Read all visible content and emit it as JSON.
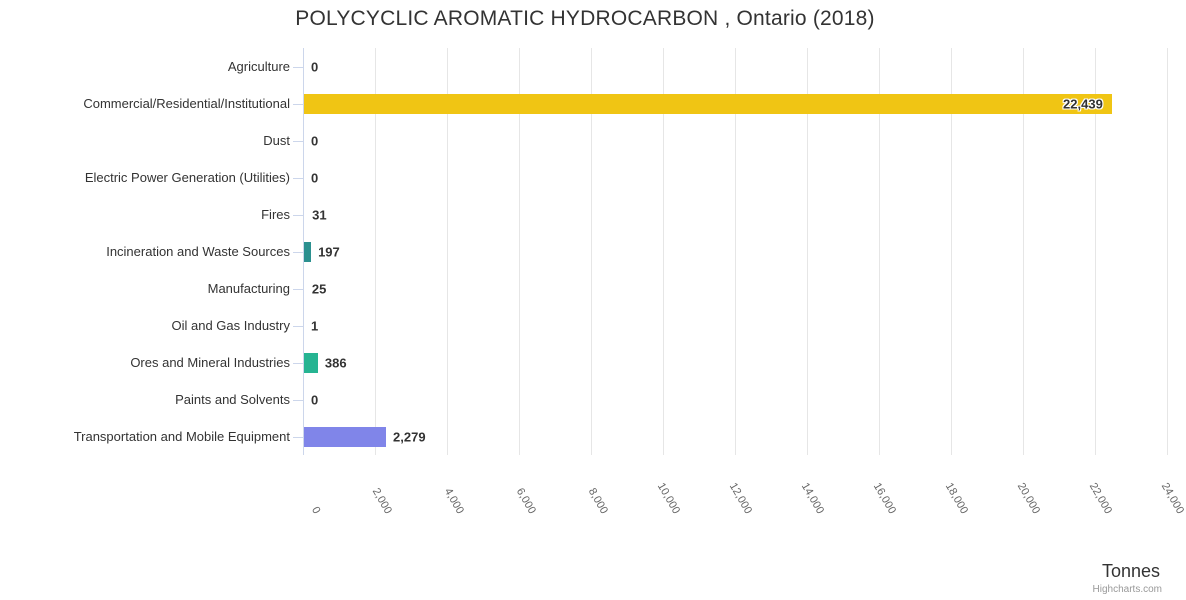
{
  "title": "POLYCYCLIC AROMATIC HYDROCARBON , Ontario (2018)",
  "credits": "Highcharts.com",
  "colors": {
    "grid": "#e6e6e6",
    "axis": "#ccd6eb",
    "label_dark": "#333333",
    "tick_label": "#666666",
    "credits": "#999999"
  },
  "chart_data": {
    "type": "bar",
    "orientation": "horizontal",
    "title": "POLYCYCLIC AROMATIC HYDROCARBON , Ontario (2018)",
    "xlabel": "Tonnes",
    "categories": [
      "Agriculture",
      "Commercial/Residential/Institutional",
      "Dust",
      "Electric Power Generation (Utilities)",
      "Fires",
      "Incineration and Waste Sources",
      "Manufacturing",
      "Oil and Gas Industry",
      "Ores and Mineral Industries",
      "Paints and Solvents",
      "Transportation and Mobile Equipment"
    ],
    "values": [
      0,
      22439,
      0,
      0,
      31,
      197,
      25,
      1,
      386,
      0,
      2279
    ],
    "value_labels": [
      "0",
      "22,439",
      "0",
      "0",
      "31",
      "197",
      "25",
      "1",
      "386",
      "0",
      "2,279"
    ],
    "bar_colors": [
      null,
      "#f0c514",
      null,
      null,
      "#2b908f",
      "#2b908f",
      null,
      null,
      "#26b492",
      null,
      "#8085e9"
    ],
    "xlim": [
      0,
      24000
    ],
    "tick_interval": 2000,
    "x_tick_labels": [
      "0",
      "2,000",
      "4,000",
      "6,000",
      "8,000",
      "10,000",
      "12,000",
      "14,000",
      "16,000",
      "18,000",
      "20,000",
      "22,000",
      "24,000"
    ],
    "grid": true,
    "legend": false,
    "unit": "Tonnes"
  }
}
